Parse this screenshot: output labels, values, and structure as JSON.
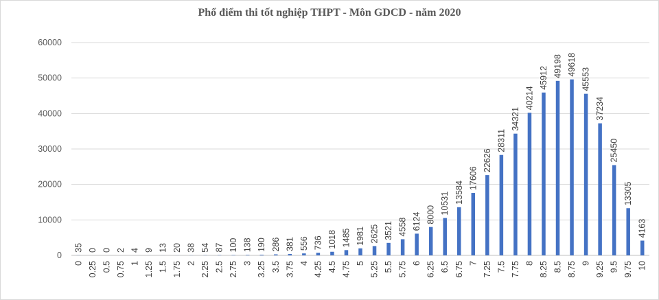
{
  "chart_data": {
    "type": "bar",
    "title": "Phổ điểm thi tốt nghiệp THPT - Môn GDCD - năm 2020",
    "xlabel": "",
    "ylabel": "",
    "ylim": [
      0,
      60000
    ],
    "yticks": [
      "0",
      "10000",
      "20000",
      "30000",
      "40000",
      "50000",
      "60000"
    ],
    "grid": true,
    "bar_color": "#4472c4",
    "categories": [
      "0",
      "0.25",
      "0.5",
      "0.75",
      "1",
      "1.25",
      "1.5",
      "1.75",
      "2",
      "2.25",
      "2.5",
      "2.75",
      "3",
      "3.25",
      "3.5",
      "3.75",
      "4",
      "4.25",
      "4.5",
      "4.75",
      "5",
      "5.25",
      "5.5",
      "5.75",
      "6",
      "6.25",
      "6.5",
      "6.75",
      "7",
      "7.25",
      "7.5",
      "7.75",
      "8",
      "8.25",
      "8.5",
      "8.75",
      "9",
      "9.25",
      "9.5",
      "9.75",
      "10"
    ],
    "values": [
      35,
      0,
      0,
      2,
      4,
      9,
      13,
      20,
      38,
      54,
      87,
      100,
      138,
      190,
      286,
      381,
      556,
      736,
      1018,
      1485,
      1981,
      2625,
      3521,
      4558,
      6124,
      8000,
      10531,
      13584,
      17606,
      22626,
      28311,
      34321,
      40214,
      45912,
      49198,
      49618,
      45553,
      37234,
      25450,
      13305,
      4163
    ]
  }
}
